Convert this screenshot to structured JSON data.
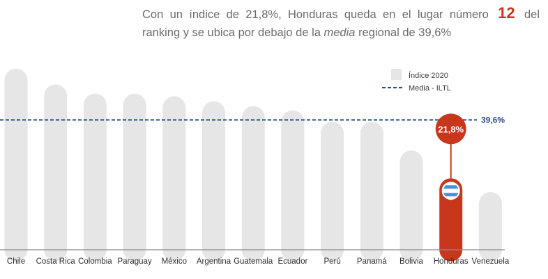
{
  "headline": {
    "part1": "Con un índice de 21,8%, Honduras queda en el lugar número",
    "rank": "12",
    "part2": "del ranking y se ubica por debajo de la",
    "emph": "media",
    "part3": "regional de 39,6%"
  },
  "colors": {
    "bar": "#e6e6e6",
    "highlight": "#c8361c",
    "average_line": "#1f4d8a",
    "headline_text": "#6b6b6b"
  },
  "chart_data": {
    "type": "bar",
    "categories": [
      "Chile",
      "Costa Rica",
      "Colombia",
      "Paraguay",
      "México",
      "Argentina",
      "Guatemala",
      "Ecuador",
      "Perú",
      "Panamá",
      "Bolivia",
      "Honduras",
      "Venezuela"
    ],
    "series": [
      {
        "name": "Índice 2020",
        "values": [
          55.2,
          50.4,
          47.6,
          47.6,
          46.8,
          45.3,
          43.8,
          42.5,
          39.0,
          39.0,
          30.3,
          21.8,
          17.6
        ]
      }
    ],
    "average": {
      "name": "Media - ILTL",
      "value": 39.6,
      "label": "39,6%"
    },
    "highlight": {
      "category": "Honduras",
      "label": "21,8%",
      "flag_icon": "honduras-flag-icon"
    },
    "ylim": [
      0,
      56
    ],
    "grid": false,
    "legend_position": "top-right",
    "title": "",
    "xlabel": "",
    "ylabel": ""
  }
}
